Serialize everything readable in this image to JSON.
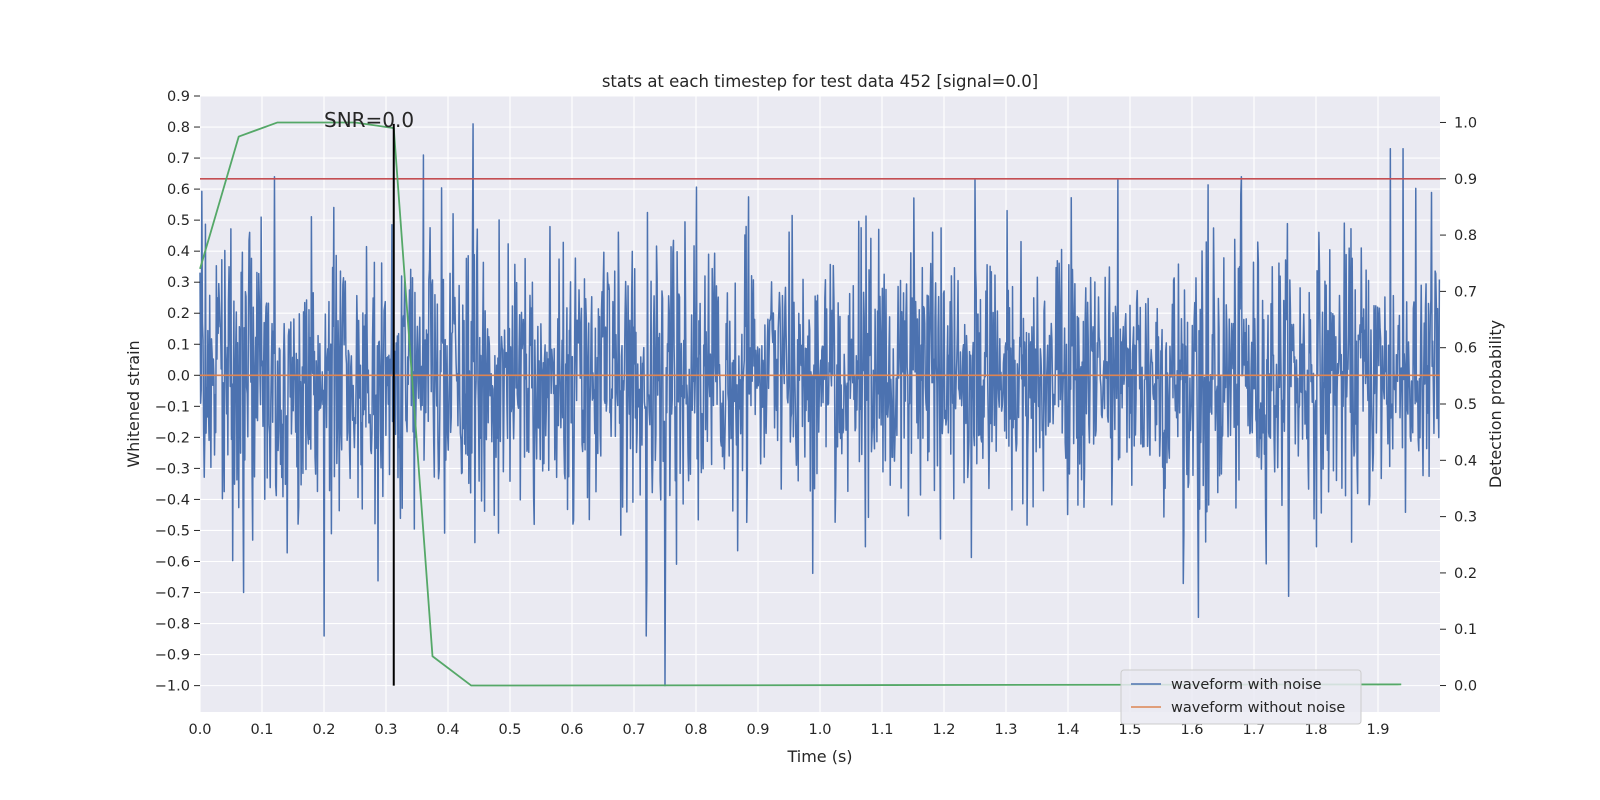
{
  "chart_data": {
    "type": "line",
    "title": "stats at each timestep for test data 452 [signal=0.0]",
    "xlabel": "Time (s)",
    "ylabel": "Whitened strain",
    "y2label": "Detection probability",
    "xlim": [
      0.0,
      2.0
    ],
    "ylim": [
      -1.085,
      0.9
    ],
    "y2lim": [
      -0.047,
      1.047
    ],
    "xticks": [
      "0.0",
      "0.1",
      "0.2",
      "0.3",
      "0.4",
      "0.5",
      "0.6",
      "0.7",
      "0.8",
      "0.9",
      "1.0",
      "1.1",
      "1.2",
      "1.3",
      "1.4",
      "1.5",
      "1.6",
      "1.7",
      "1.8",
      "1.9"
    ],
    "yticks": [
      "0.9",
      "0.8",
      "0.7",
      "0.6",
      "0.5",
      "0.4",
      "0.3",
      "0.2",
      "0.1",
      "0.0",
      "−0.1",
      "−0.2",
      "−0.3",
      "−0.4",
      "−0.5",
      "−0.6",
      "−0.7",
      "−0.8",
      "−0.9",
      "−1.0"
    ],
    "y2ticks": [
      "1.0",
      "0.9",
      "0.8",
      "0.7",
      "0.6",
      "0.5",
      "0.4",
      "0.3",
      "0.2",
      "0.1",
      "0.0"
    ],
    "grid": true,
    "legend_position": "bottom-right",
    "series": [
      {
        "name": "waveform with noise",
        "axis": "left",
        "color": "#4c72b0",
        "noise_std": 0.21,
        "sample_count": 2048,
        "extremes": [
          {
            "x": 0.12,
            "y": 0.64
          },
          {
            "x": 0.2,
            "y": -0.84
          },
          {
            "x": 0.44,
            "y": 0.81
          },
          {
            "x": 0.36,
            "y": 0.71
          },
          {
            "x": 0.07,
            "y": -0.7
          },
          {
            "x": 0.75,
            "y": -1.0
          },
          {
            "x": 0.72,
            "y": -0.84
          },
          {
            "x": 1.61,
            "y": -0.78
          },
          {
            "x": 1.68,
            "y": -0.72
          },
          {
            "x": 1.68,
            "y": 0.64
          },
          {
            "x": 1.92,
            "y": 0.73
          },
          {
            "x": 1.94,
            "y": 0.73
          },
          {
            "x": 1.25,
            "y": 0.63
          },
          {
            "x": 1.48,
            "y": 0.63
          }
        ]
      },
      {
        "name": "waveform without noise",
        "axis": "left",
        "color": "#dd8452",
        "x": [
          0.0,
          2.0
        ],
        "y": [
          0.0,
          0.0
        ]
      },
      {
        "axis": "right",
        "color": "#55a868",
        "x": [
          0.0,
          0.0625,
          0.125,
          0.1875,
          0.25,
          0.3125,
          0.375,
          0.4375,
          0.5,
          1.9375
        ],
        "y": [
          0.74,
          0.975,
          1.0,
          1.0,
          1.0,
          0.99,
          0.052,
          0.0,
          0.0,
          0.002
        ]
      }
    ],
    "threshold": {
      "axis": "right",
      "y": 0.9,
      "color": "#c44e52"
    },
    "marker_line": {
      "x": 0.3125,
      "y_from": -1.0,
      "y_to": 0.81,
      "color": "#000000"
    },
    "annotation": {
      "text": "SNR=0.0",
      "x": 0.2,
      "y": 0.8
    }
  }
}
